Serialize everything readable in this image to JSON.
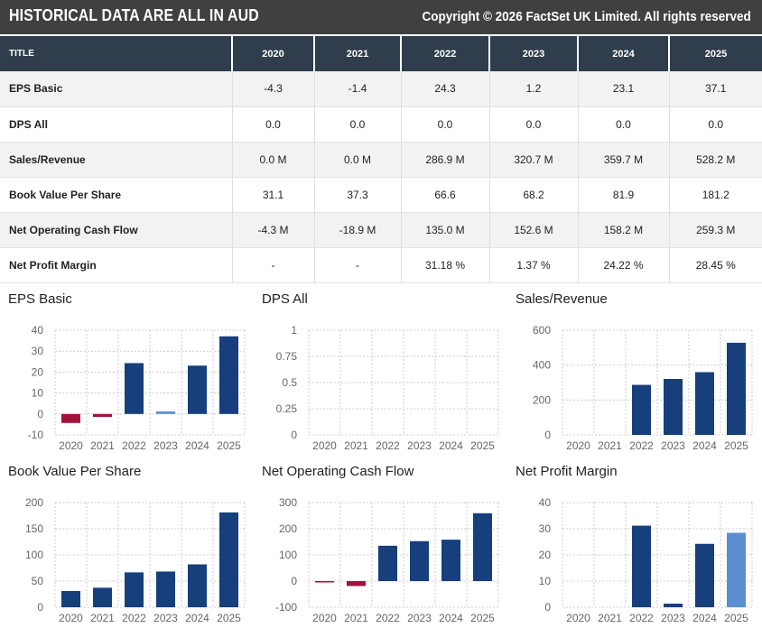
{
  "header": {
    "title": "HISTORICAL DATA ARE ALL IN AUD",
    "copyright": "Copyright © 2026 FactSet UK Limited. All rights reserved"
  },
  "table": {
    "columns": [
      "TITLE",
      "2020",
      "2021",
      "2022",
      "2023",
      "2024",
      "2025"
    ],
    "rows": [
      {
        "label": "EPS Basic",
        "values": [
          "-4.3",
          "-1.4",
          "24.3",
          "1.2",
          "23.1",
          "37.1"
        ]
      },
      {
        "label": "DPS All",
        "values": [
          "0.0",
          "0.0",
          "0.0",
          "0.0",
          "0.0",
          "0.0"
        ]
      },
      {
        "label": "Sales/Revenue",
        "values": [
          "0.0 M",
          "0.0 M",
          "286.9 M",
          "320.7 M",
          "359.7 M",
          "528.2 M"
        ]
      },
      {
        "label": "Book Value Per Share",
        "values": [
          "31.1",
          "37.3",
          "66.6",
          "68.2",
          "81.9",
          "181.2"
        ]
      },
      {
        "label": "Net Operating Cash Flow",
        "values": [
          "-4.3 M",
          "-18.9 M",
          "135.0 M",
          "152.6 M",
          "158.2 M",
          "259.3 M"
        ]
      },
      {
        "label": "Net Profit Margin",
        "values": [
          "-",
          "-",
          "31.18 %",
          "1.37 %",
          "24.22 %",
          "28.45 %"
        ]
      }
    ]
  },
  "colors": {
    "positive": "#163f7c",
    "negative": "#a3123a",
    "highlight": "#5b8fd2",
    "grid": "#cccccc",
    "header_bg": "#404040",
    "table_header_bg": "#2f3d4c"
  },
  "chart_data": [
    {
      "type": "bar",
      "title": "EPS Basic",
      "categories": [
        "2020",
        "2021",
        "2022",
        "2023",
        "2024",
        "2025"
      ],
      "values": [
        -4.3,
        -1.4,
        24.3,
        1.2,
        23.1,
        37.1
      ],
      "ylim": [
        -10,
        40
      ],
      "yticks": [
        40,
        30,
        20,
        10,
        0,
        -10
      ],
      "grid": true,
      "highlight_index": 3
    },
    {
      "type": "bar",
      "title": "DPS All",
      "categories": [
        "2020",
        "2021",
        "2022",
        "2023",
        "2024",
        "2025"
      ],
      "values": [
        0,
        0,
        0,
        0,
        0,
        0
      ],
      "ylim": [
        0,
        1
      ],
      "yticks": [
        1,
        0.75,
        0.5,
        0.25,
        0
      ],
      "grid": true,
      "highlight_index": -1
    },
    {
      "type": "bar",
      "title": "Sales/Revenue",
      "categories": [
        "2020",
        "2021",
        "2022",
        "2023",
        "2024",
        "2025"
      ],
      "values": [
        0,
        0,
        286.9,
        320.7,
        359.7,
        528.2
      ],
      "ylim": [
        0,
        600
      ],
      "yticks": [
        600,
        400,
        200,
        0
      ],
      "grid": true,
      "highlight_index": -1
    },
    {
      "type": "bar",
      "title": "Book Value Per Share",
      "categories": [
        "2020",
        "2021",
        "2022",
        "2023",
        "2024",
        "2025"
      ],
      "values": [
        31.1,
        37.3,
        66.6,
        68.2,
        81.9,
        181.2
      ],
      "ylim": [
        0,
        200
      ],
      "yticks": [
        200,
        150,
        100,
        50,
        0
      ],
      "grid": true,
      "highlight_index": -1
    },
    {
      "type": "bar",
      "title": "Net Operating Cash Flow",
      "categories": [
        "2020",
        "2021",
        "2022",
        "2023",
        "2024",
        "2025"
      ],
      "values": [
        -4.3,
        -18.9,
        135.0,
        152.6,
        158.2,
        259.3
      ],
      "ylim": [
        -100,
        300
      ],
      "yticks": [
        300,
        200,
        100,
        0,
        -100
      ],
      "grid": true,
      "highlight_index": -1
    },
    {
      "type": "bar",
      "title": "Net Profit Margin",
      "categories": [
        "2020",
        "2021",
        "2022",
        "2023",
        "2024",
        "2025"
      ],
      "values": [
        null,
        null,
        31.18,
        1.37,
        24.22,
        28.45
      ],
      "ylim": [
        0,
        40
      ],
      "yticks": [
        40,
        30,
        20,
        10,
        0
      ],
      "grid": true,
      "highlight_index": 5
    }
  ]
}
